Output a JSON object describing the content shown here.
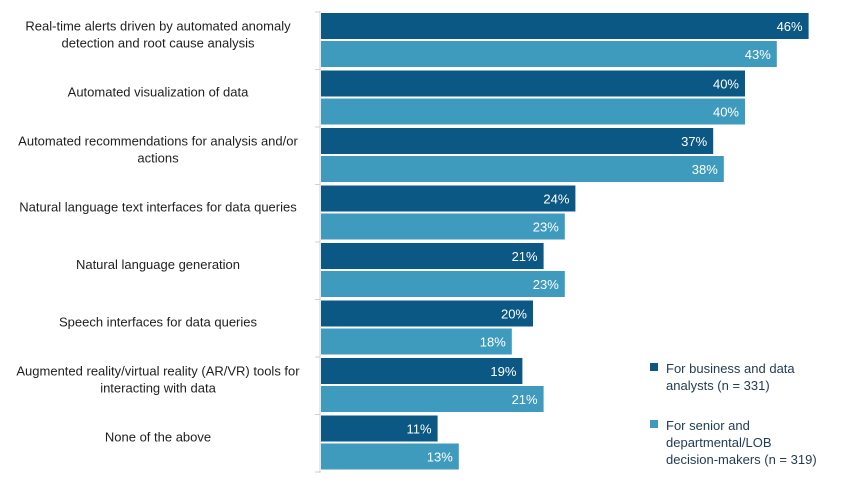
{
  "chart_data": {
    "type": "bar",
    "orientation": "horizontal",
    "title": "",
    "xlabel": "",
    "ylabel": "",
    "xlim": [
      0,
      100
    ],
    "grid": false,
    "legend_position": "bottom-right",
    "value_suffix": "%",
    "categories": [
      [
        "Real-time alerts driven by automated anomaly",
        "detection and root cause analysis"
      ],
      [
        "Automated visualization of data"
      ],
      [
        "Automated recommendations for analysis and/or",
        "actions"
      ],
      [
        "Natural language text interfaces for data queries"
      ],
      [
        "Natural language generation"
      ],
      [
        "Speech interfaces for data queries"
      ],
      [
        "Augmented reality/virtual reality (AR/VR) tools for",
        "interacting with data"
      ],
      [
        "None of the above"
      ]
    ],
    "series": [
      {
        "name": "For business and data analysts (n = 331)",
        "legend_lines": [
          "For business and data",
          "analysts (n = 331)"
        ],
        "color": "#0b5884",
        "values": [
          46,
          40,
          37,
          24,
          21,
          20,
          19,
          11
        ]
      },
      {
        "name": "For senior and departmental/LOB decision-makers (n = 319)",
        "legend_lines": [
          "For senior and",
          "departmental/LOB",
          "decision-makers (n = 319)"
        ],
        "color": "#3f9bbd",
        "values": [
          43,
          40,
          38,
          23,
          23,
          18,
          21,
          13
        ]
      }
    ]
  }
}
